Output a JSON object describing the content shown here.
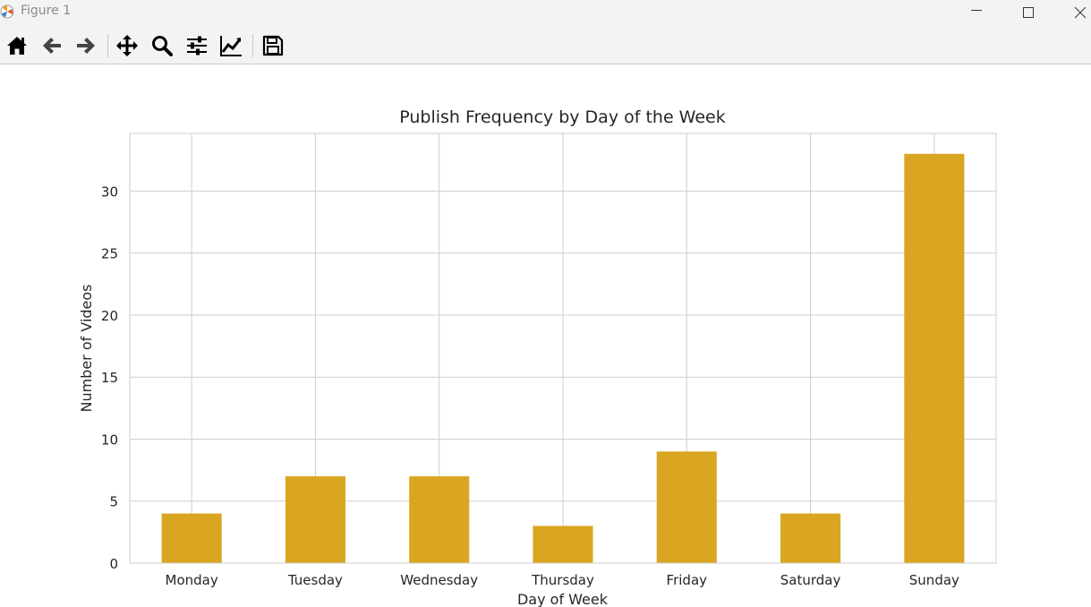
{
  "window": {
    "title": "Figure 1"
  },
  "toolbar": {
    "tools": [
      {
        "name": "home",
        "icon": "home-icon"
      },
      {
        "name": "back",
        "icon": "arrow-left-icon"
      },
      {
        "name": "forward",
        "icon": "arrow-right-icon"
      },
      {
        "name": "pan",
        "icon": "move-icon"
      },
      {
        "name": "zoom",
        "icon": "magnifier-icon"
      },
      {
        "name": "configure-subplots",
        "icon": "sliders-icon"
      },
      {
        "name": "edit-axis",
        "icon": "line-chart-icon"
      },
      {
        "name": "save",
        "icon": "floppy-disk-icon"
      }
    ]
  },
  "chart_data": {
    "type": "bar",
    "title": "Publish Frequency by Day of the Week",
    "xlabel": "Day of Week",
    "ylabel": "Number of Videos",
    "categories": [
      "Monday",
      "Tuesday",
      "Wednesday",
      "Thursday",
      "Friday",
      "Saturday",
      "Sunday"
    ],
    "values": [
      4,
      7,
      7,
      3,
      9,
      4,
      33
    ],
    "yticks": [
      0,
      5,
      10,
      15,
      20,
      25,
      30
    ],
    "ylim": [
      0,
      34.65
    ],
    "grid": true,
    "bar_color": "#DAA520"
  }
}
